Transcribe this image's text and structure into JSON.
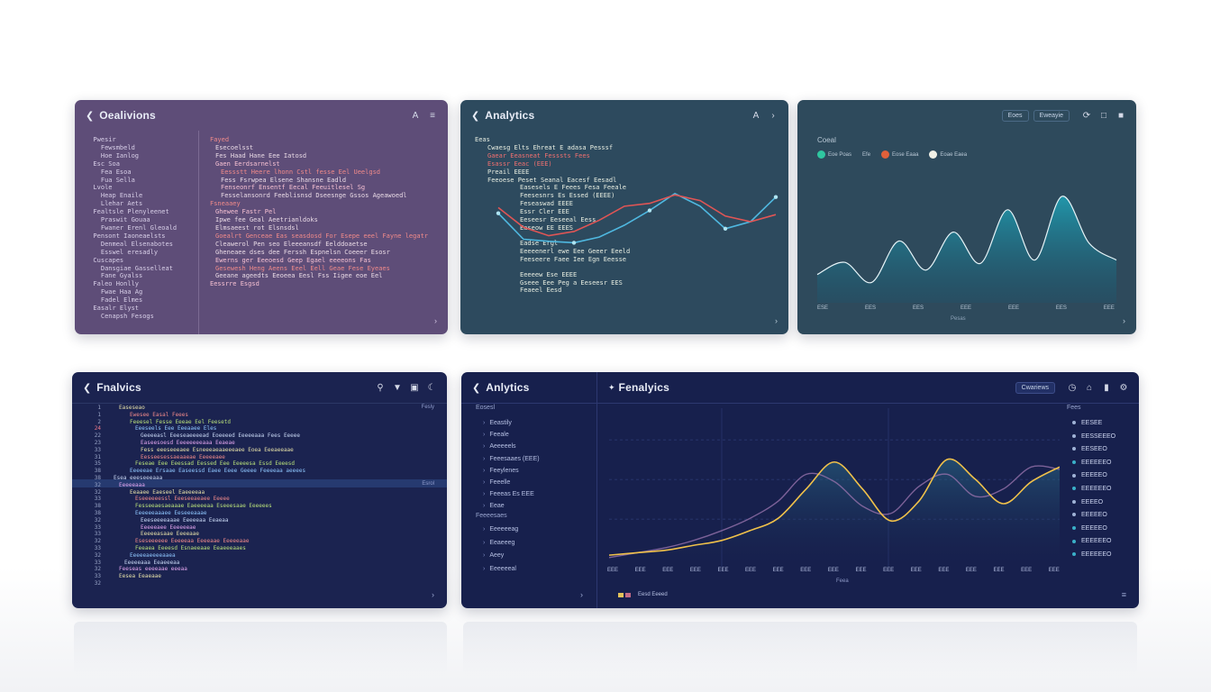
{
  "panel1": {
    "title": "Oealivions",
    "gutter_lines": [
      "Pwesir",
      "Fewsmbeld",
      "Hoe Ianlog",
      "Esc Soa",
      "Fea Esoa",
      "Fua Sella",
      "Lvole",
      "Heap Enaile",
      "Llehar Aets",
      "Fealtsle Plenyleenet",
      "Praswit Gouaa",
      "Fwaner Erenl Gleoald",
      "Pensont Iaoneaelsts",
      "Denmeal Elsenabotes",
      "Esswel eresadly",
      "Cuscapes",
      "Dansgiae Gasselleat",
      "Fane Gyalss",
      "Faleo Honlly",
      "Fwae Haa Ag",
      "Fadel Elmes",
      "Easalr Elyst",
      "Cenapsh Fesogs"
    ],
    "code_lines": [
      "Fayed",
      "Esecoelsst",
      "Fes Haad Hane Eee Iatosd",
      "Gaen Eerdsarnelst",
      "Eessstt Heere lhonn Cstl fesse Eel Ueelgsd",
      "Fess Fsrwpea Elsene Shansne Eadld",
      "Fenseonrf Ensentf Eecal Feeuitlesel Sg",
      "Fesselansonrd Feeblisnsd Dseesnge Gssos Ageawoedl",
      "Fsneaaey",
      "Ghewee Fastr Pel",
      "Ipwe fee Geal Aeetrianldoks",
      "Elmsaeest rot Elsnsdsl",
      "Goealrt Genceae Eas seasdosd For Esepe eeel Fayne legatr",
      "Cleawerol Pen seo Eleeeansdf Eelddoaetse",
      "Gheneaee dses dee Ferssh Espnelsn Coeeer Esosr",
      "Ewerns ger Eeeoesd Geep Egael eeeeons Fas",
      "Gesewesh Heng Aeens Eeel Eell Geae Fese Eyeaes",
      "Geeane ageedts Eeoeea Eesl Fss Iigee eoe Eel",
      "Eessrre Esgsd"
    ]
  },
  "panel2": {
    "title": "Analytics",
    "code_lines": [
      "Eeas",
      "Cwaesg Elts Ehreat E adasa Pesssf",
      "Gaear Eeasneat Fesssts Fees",
      "Esassr Eeac (EEE)",
      "Preail EEEE",
      "Feeoese Peset Seanal Eacesf Eesadl",
      "Easesels E Feees Fesa Feeale",
      "Feesesnrs Es Essed (EEEE)",
      "Feseaswad EEEE",
      "Essr Cler EEE",
      "Eeseesr Eeseeal Eess",
      "Easeow EE EEES",
      "Eadse Ergl",
      "Eeeeenerl ewe Eee Geeer Eeeld",
      "Feeseere Faee Iee Egn Eeesse",
      "Eeeeew Ese EEEE",
      "Gseee Eee Peg a Eeseesr EES",
      "Feaeel Eesd"
    ],
    "chart_data": {
      "type": "line",
      "series": [
        {
          "color": "#4fb8e0",
          "values": [
            0.62,
            0.25,
            0.22,
            0.2,
            0.28,
            0.45,
            0.66,
            0.9,
            0.72,
            0.4,
            0.5,
            0.85
          ]
        },
        {
          "color": "#e05555",
          "values": [
            0.7,
            0.42,
            0.3,
            0.36,
            0.52,
            0.72,
            0.76,
            0.88,
            0.8,
            0.58,
            0.5,
            0.6
          ]
        }
      ]
    }
  },
  "panel3": {
    "chips": [
      "Eoes",
      "Eweayie"
    ],
    "legend_title": "Coeal",
    "legend": [
      {
        "label": "Eoe Poas",
        "color": "#2fc6a0"
      },
      {
        "label": "Efe",
        "color": ""
      },
      {
        "label": "Eose Eaaa",
        "color": "#e0603a"
      },
      {
        "label": "Eoae Eaea",
        "color": "#f0f0e6"
      }
    ],
    "x_ticks": [
      "ESE",
      "EES",
      "EES",
      "EEE",
      "EEE",
      "EES",
      "EEE"
    ],
    "x_label": "Pesas",
    "chart_data": {
      "type": "area",
      "values": [
        0.22,
        0.33,
        0.15,
        0.52,
        0.26,
        0.6,
        0.32,
        0.8,
        0.35,
        0.92,
        0.5,
        0.35
      ]
    }
  },
  "panel4": {
    "title": "Fnalvics",
    "side_labels": [
      "Fesly",
      "Esrol"
    ],
    "gutter_numbers": [
      "1",
      "1",
      "2",
      "24",
      "22",
      "23",
      "33",
      "31",
      "35",
      "38",
      "38",
      "32",
      "32",
      "33",
      "38",
      "38",
      "32",
      "33",
      "33",
      "32",
      "33",
      "32",
      "33",
      "32",
      "33",
      "32"
    ],
    "code_lines": [
      "Easeseao",
      "Ewesee Easal Feees",
      "Feeesel Fesse Eeeae Eel Feesetd",
      "Eeeseels Eee Eeeaaee Eles",
      "Geeeeasl Eeeseaeeeead Eoeeeed Eeeeeaaa Fees Eeeee",
      "Easeesoesd Eeeeeeeeaaa Eeaeae",
      "Fess eeeseeeaee Esneeeaeaaeeeaee Eoea Eeeaeeaae",
      "Eesseesessaeaaeae Eeeeeaee",
      "Feseae Eee Eeessad Eessed Eee Eeeeesa Essd Eeeesd",
      "Eeeeeae Ersaae Easeessd Eaee Eeee Geeee Feeeeaa aeeees",
      "Esea eeeseeeaaa",
      "Eeeeeaaa",
      "Eeaaee Eaeseel Eaeeeeaa",
      "Eseeeeeessl Eeeseeaeaee Eeeee",
      "Fesseeaesaeaaae Eaeeeeaa Eseeesaae Eeeeees",
      "Eeeeeeaaaee Eeseeeaaae",
      "Eeeseeeeaaae Eeeeeaa Eeaeaa",
      "Eeeeeaee Eeeeeeae",
      "Eeeeeasaae Eeeeaae",
      "Eseseeeeee Eeeeeaa Eeeeaae Eeeeeaae",
      "Feeaea Eeeesd Esnaeeaae Eeaeeeaaes",
      "Eeeeeaeeeeaaea",
      "Eeeeeaaa Eeaeeeaa",
      "Feeseas eeeeaae eeeaa",
      "Eesea Eeaeaae"
    ]
  },
  "panel5": {
    "title": "Anlytics",
    "subtitle": "Fenalyics",
    "chip": "Cwariews",
    "sidebar_heading": "Eosesl",
    "sidebar_items": [
      "Eeastily",
      "Feeale",
      "Aeeeeels",
      "Feeesaaes (EEE)",
      "Feeylenes",
      "Feeelle",
      "Feeeas Es EEE",
      "Eeae"
    ],
    "sidebar_heading2": "Feeeesaes",
    "sidebar_items2": [
      "Eeeeeeag",
      "Eeaeeeg",
      "Aeey",
      "Eeeeeeal"
    ],
    "x_ticks": [
      "EEE",
      "EEE",
      "EEE",
      "EEE",
      "EEE",
      "EEE",
      "EEE",
      "EEE",
      "EEE",
      "EEE",
      "EEE",
      "EEE",
      "EEE",
      "EEE",
      "EEE",
      "EEE",
      "EEE"
    ],
    "x_label": "Feea",
    "legend_label": "Eesd Eeeed",
    "right_heading": "Fees",
    "right_items": [
      "EESEE",
      "EESSEEEO",
      "EESEEO",
      "EEEEEEO",
      "EEEEEO",
      "EEEEEEO",
      "EEEEO",
      "EEEEEO",
      "EEEEEO",
      "EEEEEEO",
      "EEEEEEO"
    ],
    "right_colors": [
      "#9fb2d6",
      "#9fb2d6",
      "#9fb2d6",
      "#3ab0c8",
      "#9fb2d6",
      "#3ab0c8",
      "#9fb2d6",
      "#9fb2d6",
      "#3ab0c8",
      "#3ab0c8",
      "#3ab0c8"
    ],
    "chart_data": {
      "type": "line",
      "series": [
        {
          "color": "#f0c14a",
          "values": [
            0.08,
            0.1,
            0.12,
            0.16,
            0.2,
            0.28,
            0.38,
            0.62,
            0.84,
            0.62,
            0.36,
            0.52,
            0.86,
            0.7,
            0.5,
            0.68,
            0.8
          ]
        },
        {
          "color": "#8e6da6",
          "values": [
            0.06,
            0.1,
            0.14,
            0.2,
            0.28,
            0.38,
            0.52,
            0.74,
            0.68,
            0.48,
            0.42,
            0.64,
            0.74,
            0.56,
            0.62,
            0.8,
            0.78
          ]
        }
      ]
    }
  }
}
